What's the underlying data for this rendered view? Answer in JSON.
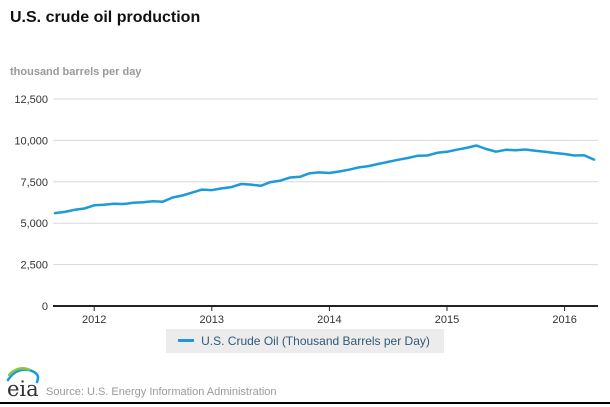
{
  "page": {
    "title": "U.S. crude oil production",
    "unit_label": "thousand barrels per day"
  },
  "chart_data": {
    "type": "line",
    "title": "U.S. crude oil production",
    "ylabel": "thousand barrels per day",
    "ylim": [
      0,
      12500
    ],
    "grid": "horizontal-only",
    "legend_position": "bottom-center",
    "x_start": "2011-09",
    "x_end": "2016-04",
    "x_interval": "monthly",
    "y_ticks": [
      {
        "value": 12500,
        "label": "12,500"
      },
      {
        "value": 10000,
        "label": "10,000"
      },
      {
        "value": 7500,
        "label": "7,500"
      },
      {
        "value": 5000,
        "label": "5,000"
      },
      {
        "value": 2500,
        "label": "2,500"
      },
      {
        "value": 0,
        "label": "0"
      }
    ],
    "x_ticks": [
      {
        "label": "2012",
        "month_index": 4
      },
      {
        "label": "2013",
        "month_index": 16
      },
      {
        "label": "2014",
        "month_index": 28
      },
      {
        "label": "2015",
        "month_index": 40
      },
      {
        "label": "2016",
        "month_index": 52
      }
    ],
    "series": [
      {
        "name": "U.S. Crude Oil (Thousand Barrels per Day)",
        "color": "#1d9bd8",
        "values": [
          5610,
          5680,
          5810,
          5890,
          6080,
          6120,
          6180,
          6160,
          6230,
          6270,
          6320,
          6300,
          6550,
          6670,
          6850,
          7030,
          7000,
          7100,
          7180,
          7370,
          7330,
          7260,
          7480,
          7570,
          7760,
          7800,
          8020,
          8070,
          8030,
          8120,
          8230,
          8370,
          8450,
          8580,
          8700,
          8830,
          8940,
          9070,
          9090,
          9250,
          9310,
          9440,
          9550,
          9690,
          9480,
          9320,
          9430,
          9410,
          9450,
          9380,
          9320,
          9240,
          9180,
          9090,
          9100,
          8840
        ]
      }
    ]
  },
  "legend": {
    "label": "U.S. Crude Oil (Thousand Barrels per Day)"
  },
  "footer": {
    "logo_text": "eia",
    "source": "Source: U.S. Energy Information Administration"
  },
  "colors": {
    "line": "#1d9bd8",
    "grid": "#d8d8d8",
    "axis": "#222222",
    "legend_bg": "#ececec",
    "legend_text": "#2f5a78",
    "logo_green": "#8cc63e",
    "logo_blue": "#1d9bd8"
  }
}
